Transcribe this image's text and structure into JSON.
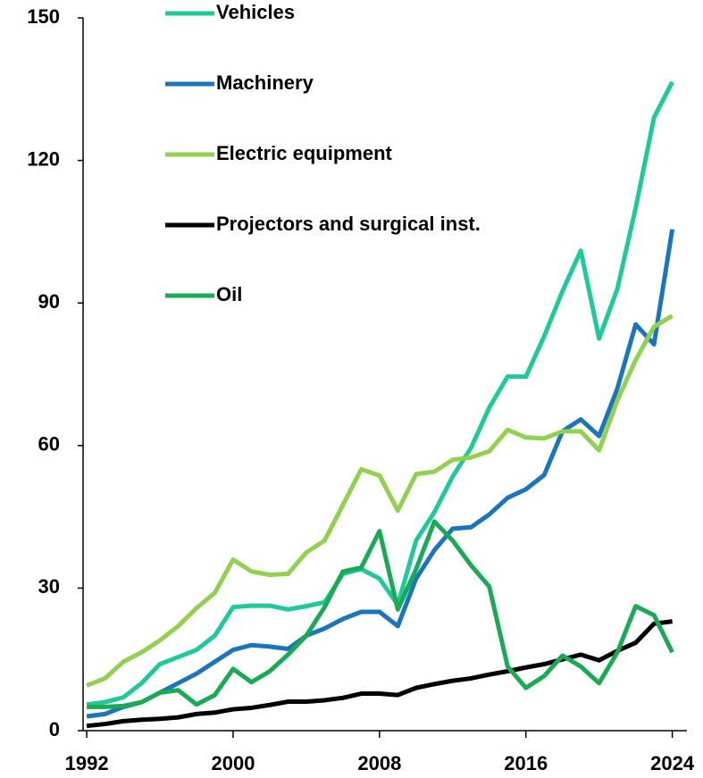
{
  "chart_data": {
    "type": "line",
    "x": [
      1992,
      1993,
      1994,
      1995,
      1996,
      1997,
      1998,
      1999,
      2000,
      2001,
      2002,
      2003,
      2004,
      2005,
      2006,
      2007,
      2008,
      2009,
      2010,
      2011,
      2012,
      2013,
      2014,
      2015,
      2016,
      2017,
      2018,
      2019,
      2020,
      2021,
      2022,
      2023,
      2024
    ],
    "series": [
      {
        "name": "Vehicles",
        "color": "#1fc99a",
        "values": [
          5.5,
          6,
          7,
          10,
          14,
          15.5,
          17,
          20,
          26,
          26.3,
          26.3,
          25.5,
          26.2,
          27,
          33,
          34,
          32,
          26.5,
          40,
          46,
          53.5,
          59.5,
          68,
          74.5,
          74.5,
          83,
          92.5,
          101,
          82.5,
          93,
          110,
          129,
          136.5
        ]
      },
      {
        "name": "Machinery",
        "color": "#1b75bb",
        "values": [
          3,
          3.5,
          5,
          6,
          8,
          10,
          12,
          14.5,
          17,
          18,
          17.7,
          17.2,
          20,
          21.5,
          23.5,
          25,
          25,
          22,
          32,
          38,
          42.5,
          42.8,
          45.5,
          49,
          50.8,
          53.8,
          63,
          65.5,
          62,
          72,
          85.5,
          81.3,
          105.5
        ]
      },
      {
        "name": "Electric equipment",
        "color": "#92d050",
        "values": [
          9.5,
          11,
          14.5,
          16.5,
          19,
          22,
          25.8,
          29,
          36,
          33.5,
          32.8,
          33,
          37.5,
          40,
          47.5,
          55,
          53.7,
          46.3,
          54,
          54.5,
          57,
          57.5,
          58.8,
          63.3,
          61.7,
          61.5,
          63,
          63,
          59,
          69.5,
          78,
          85,
          87.3
        ]
      },
      {
        "name": "Projectors and surgical inst.",
        "color": "#000000",
        "values": [
          1,
          1.4,
          2,
          2.3,
          2.5,
          2.8,
          3.5,
          3.8,
          4.5,
          4.8,
          5.4,
          6.1,
          6.1,
          6.4,
          6.9,
          7.8,
          7.8,
          7.5,
          9,
          9.8,
          10.5,
          11,
          11.8,
          12.5,
          13.3,
          14,
          15,
          16,
          14.8,
          16.8,
          18.5,
          22.5,
          23
        ]
      },
      {
        "name": "Oil",
        "color": "#1aaa55",
        "values": [
          5,
          5,
          5.2,
          6,
          8,
          8.5,
          5.5,
          7.5,
          13,
          10.2,
          12.5,
          16,
          20,
          26,
          33.5,
          34.3,
          42,
          25.5,
          34,
          44,
          40,
          34.8,
          30.3,
          13.5,
          9,
          11.5,
          15.8,
          13.5,
          10,
          16.5,
          26.2,
          24.3,
          16.5
        ]
      }
    ],
    "xlim": [
      1991.8,
      2024.8
    ],
    "xticks": [
      1992,
      2000,
      2008,
      2016,
      2024
    ],
    "ylim": [
      0,
      150
    ],
    "yticks": [
      0,
      30,
      60,
      90,
      120,
      150
    ],
    "legend": "upper left"
  }
}
